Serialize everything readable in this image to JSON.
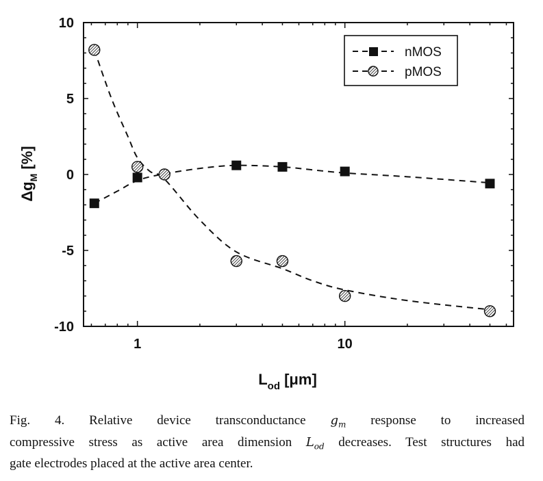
{
  "chart_data": {
    "type": "line",
    "xscale": "log",
    "xlim": [
      0.55,
      65
    ],
    "ylim": [
      -10,
      10
    ],
    "xticks": [
      {
        "value": 1,
        "label": "1"
      },
      {
        "value": 10,
        "label": "10"
      }
    ],
    "yticks": [
      {
        "value": 10,
        "label": "10"
      },
      {
        "value": 5,
        "label": "5"
      },
      {
        "value": 0,
        "label": "0"
      },
      {
        "value": -5,
        "label": "-5"
      },
      {
        "value": -10,
        "label": "-10"
      }
    ],
    "xlabel_main": "L",
    "xlabel_sub": "od",
    "xlabel_unit": " [μm]",
    "ylabel_main": "Δg",
    "ylabel_sub": "M",
    "ylabel_unit": " [%]",
    "legend_position": "top-right",
    "series": [
      {
        "name": "nMOS",
        "marker": "square",
        "x": [
          0.62,
          1.0,
          3.0,
          5.0,
          10.0,
          50.0
        ],
        "y": [
          -1.9,
          -0.2,
          0.6,
          0.5,
          0.2,
          -0.6
        ],
        "curve": [
          [
            0.62,
            -1.9
          ],
          [
            0.8,
            -1.1
          ],
          [
            1.0,
            -0.4
          ],
          [
            1.3,
            0.0
          ],
          [
            2.0,
            0.4
          ],
          [
            3.0,
            0.6
          ],
          [
            5.0,
            0.5
          ],
          [
            7.0,
            0.3
          ],
          [
            10.0,
            0.1
          ],
          [
            20.0,
            -0.15
          ],
          [
            50.0,
            -0.55
          ]
        ]
      },
      {
        "name": "pMOS",
        "marker": "hatched-circle",
        "x": [
          0.62,
          1.0,
          1.35,
          3.0,
          5.0,
          10.0,
          50.0
        ],
        "y": [
          8.2,
          0.5,
          0.0,
          -5.7,
          -5.7,
          -8.0,
          -9.0
        ],
        "curve": [
          [
            0.62,
            8.2
          ],
          [
            0.75,
            5.0
          ],
          [
            0.9,
            2.5
          ],
          [
            1.0,
            1.1
          ],
          [
            1.15,
            0.2
          ],
          [
            1.35,
            -0.3
          ],
          [
            2.0,
            -3.0
          ],
          [
            3.0,
            -5.1
          ],
          [
            5.0,
            -6.2
          ],
          [
            7.0,
            -7.0
          ],
          [
            10.0,
            -7.6
          ],
          [
            20.0,
            -8.3
          ],
          [
            50.0,
            -8.9
          ]
        ]
      }
    ]
  },
  "caption": {
    "line1_part1": "Fig.  4.  Relative  device  transconductance",
    "line1_math": "g",
    "line1_math_sub": "m",
    "line1_part2": "response  to  increased",
    "line2_part1": "compressive stress as active area dimension",
    "line2_math": "L",
    "line2_math_sub": "od",
    "line2_part2": "decreases. Test structures had",
    "line3": "gate electrodes placed at the active area center."
  },
  "colors": {
    "ink": "#111111",
    "background": "#ffffff"
  }
}
